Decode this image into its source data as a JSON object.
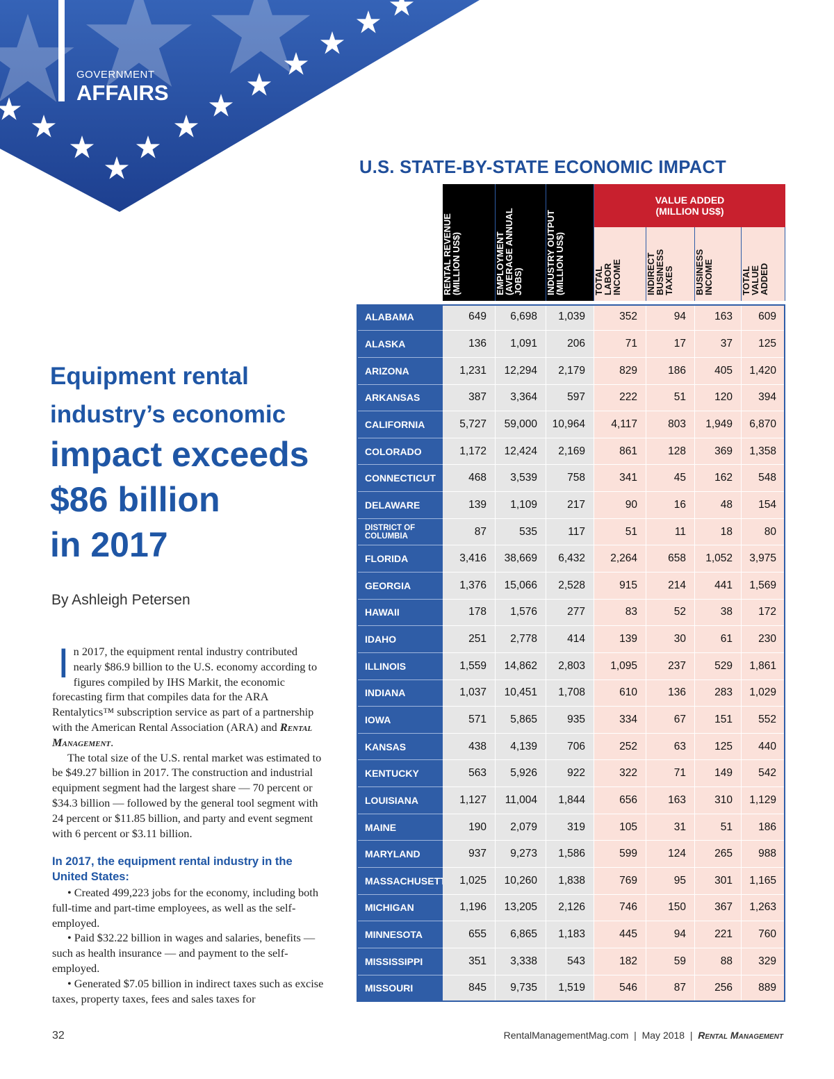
{
  "header": {
    "section": "GOVERNMENT",
    "title": "AFFAIRS"
  },
  "article": {
    "headline": [
      "Equipment rental",
      "industry’s economic",
      "impact exceeds",
      "$86 billion",
      "in 2017"
    ],
    "byline": "By Ashleigh Petersen",
    "drop_cap": "I",
    "paragraph_1": [
      "n 2017, the equipment rental industry contributed nearly $86.9 billion to the U.S. economy according to figures compiled by IHS Markit, the economic forecasting firm that compiles data for the ARA Rentalytics™ subscription service as part of a partnership with the American Rental Association (ARA) and ",
      "Rental Management",
      "."
    ],
    "paragraph_2": "The total size of the U.S. rental market was estimated to be $49.27 billion in 2017. The construction and industrial equipment segment had the largest share — 70 percent or $34.3 billion — followed by the general tool segment with 24 percent or $11.85 billion, and party and event segment with 6 percent or $3.11 billion.",
    "subhead": "In 2017, the equipment rental industry in the United States:",
    "bullets": [
      "Created 499,223 jobs for the economy, including both full-time and part-time employees, as well as the self-employed.",
      "Paid $32.22 billion in wages and salaries, benefits — such as health insurance — and payment to the self-employed.",
      "Generated $7.05 billion in indirect taxes such as excise taxes, property taxes, fees and sales taxes for"
    ]
  },
  "table": {
    "title": "U.S. STATE-BY-STATE ECONOMIC IMPACT",
    "columns": [
      [
        "RENTAL REVENUE",
        "(MILLION US$)"
      ],
      [
        "EMPLOYMENT",
        "(AVERAGE ANNUAL",
        "JOBS)"
      ],
      [
        "INDUSTRY OUTPUT",
        "(MILLION US$)"
      ],
      [
        "TOTAL",
        "LABOR",
        "INCOME"
      ],
      [
        "INDIRECT",
        "BUSINESS",
        "TAXES"
      ],
      [
        "BUSINESS",
        "INCOME"
      ],
      [
        "TOTAL",
        "VALUE",
        "ADDED"
      ]
    ],
    "group_header": [
      "VALUE ADDED",
      "(MILLION US$)"
    ],
    "rows": [
      [
        "ALABAMA",
        "649",
        "6,698",
        "1,039",
        "352",
        "94",
        "163",
        "609"
      ],
      [
        "ALASKA",
        "136",
        "1,091",
        "206",
        "71",
        "17",
        "37",
        "125"
      ],
      [
        "ARIZONA",
        "1,231",
        "12,294",
        "2,179",
        "829",
        "186",
        "405",
        "1,420"
      ],
      [
        "ARKANSAS",
        "387",
        "3,364",
        "597",
        "222",
        "51",
        "120",
        "394"
      ],
      [
        "CALIFORNIA",
        "5,727",
        "59,000",
        "10,964",
        "4,117",
        "803",
        "1,949",
        "6,870"
      ],
      [
        "COLORADO",
        "1,172",
        "12,424",
        "2,169",
        "861",
        "128",
        "369",
        "1,358"
      ],
      [
        "CONNECTICUT",
        "468",
        "3,539",
        "758",
        "341",
        "45",
        "162",
        "548"
      ],
      [
        "DELAWARE",
        "139",
        "1,109",
        "217",
        "90",
        "16",
        "48",
        "154"
      ],
      [
        "DISTRICT OF COLUMBIA",
        "87",
        "535",
        "117",
        "51",
        "11",
        "18",
        "80"
      ],
      [
        "FLORIDA",
        "3,416",
        "38,669",
        "6,432",
        "2,264",
        "658",
        "1,052",
        "3,975"
      ],
      [
        "GEORGIA",
        "1,376",
        "15,066",
        "2,528",
        "915",
        "214",
        "441",
        "1,569"
      ],
      [
        "HAWAII",
        "178",
        "1,576",
        "277",
        "83",
        "52",
        "38",
        "172"
      ],
      [
        "IDAHO",
        "251",
        "2,778",
        "414",
        "139",
        "30",
        "61",
        "230"
      ],
      [
        "ILLINOIS",
        "1,559",
        "14,862",
        "2,803",
        "1,095",
        "237",
        "529",
        "1,861"
      ],
      [
        "INDIANA",
        "1,037",
        "10,451",
        "1,708",
        "610",
        "136",
        "283",
        "1,029"
      ],
      [
        "IOWA",
        "571",
        "5,865",
        "935",
        "334",
        "67",
        "151",
        "552"
      ],
      [
        "KANSAS",
        "438",
        "4,139",
        "706",
        "252",
        "63",
        "125",
        "440"
      ],
      [
        "KENTUCKY",
        "563",
        "5,926",
        "922",
        "322",
        "71",
        "149",
        "542"
      ],
      [
        "LOUISIANA",
        "1,127",
        "11,004",
        "1,844",
        "656",
        "163",
        "310",
        "1,129"
      ],
      [
        "MAINE",
        "190",
        "2,079",
        "319",
        "105",
        "31",
        "51",
        "186"
      ],
      [
        "MARYLAND",
        "937",
        "9,273",
        "1,586",
        "599",
        "124",
        "265",
        "988"
      ],
      [
        "MASSACHUSETTS",
        "1,025",
        "10,260",
        "1,838",
        "769",
        "95",
        "301",
        "1,165"
      ],
      [
        "MICHIGAN",
        "1,196",
        "13,205",
        "2,126",
        "746",
        "150",
        "367",
        "1,263"
      ],
      [
        "MINNESOTA",
        "655",
        "6,865",
        "1,183",
        "445",
        "94",
        "221",
        "760"
      ],
      [
        "MISSISSIPPI",
        "351",
        "3,338",
        "543",
        "182",
        "59",
        "88",
        "329"
      ],
      [
        "MISSOURI",
        "845",
        "9,735",
        "1,519",
        "546",
        "87",
        "256",
        "889"
      ]
    ]
  },
  "footer": {
    "page": "32",
    "site": "RentalManagementMag.com",
    "date": "May 2018",
    "magazine": "Rental Management"
  }
}
